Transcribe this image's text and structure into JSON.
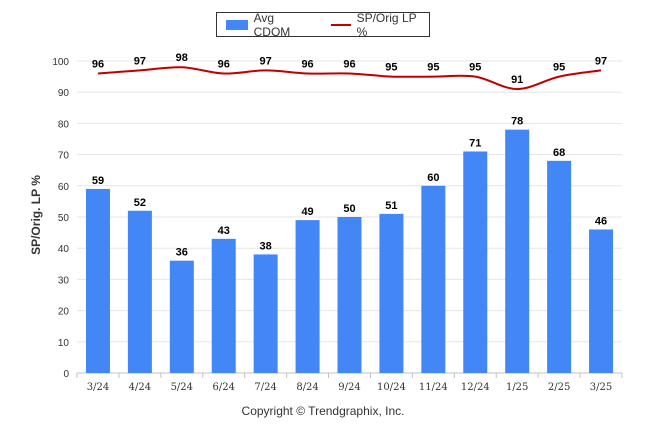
{
  "chart_data": {
    "type": "bar",
    "categories": [
      "3/24",
      "4/24",
      "5/24",
      "6/24",
      "7/24",
      "8/24",
      "9/24",
      "10/24",
      "11/24",
      "12/24",
      "1/25",
      "2/25",
      "3/25"
    ],
    "series": [
      {
        "name": "Avg CDOM",
        "type": "bar",
        "color": "#4287f5",
        "values": [
          59,
          52,
          36,
          43,
          38,
          49,
          50,
          51,
          60,
          71,
          78,
          68,
          46
        ]
      },
      {
        "name": "SP/Orig LP %",
        "type": "line",
        "color": "#c00000",
        "values": [
          96,
          97,
          98,
          96,
          97,
          96,
          96,
          95,
          95,
          95,
          91,
          95,
          97
        ]
      }
    ],
    "ylabel": "SP/Orig. LP %",
    "ylim": [
      0,
      100
    ],
    "yticks": [
      0,
      10,
      20,
      30,
      40,
      50,
      60,
      70,
      80,
      90,
      100
    ],
    "grid": true,
    "legend_position": "top-center",
    "data_labels": true
  },
  "legend": {
    "bar_label": "Avg CDOM",
    "line_label": "SP/Orig LP %"
  },
  "footer": {
    "copyright": "Copyright © Trendgraphix, Inc."
  }
}
